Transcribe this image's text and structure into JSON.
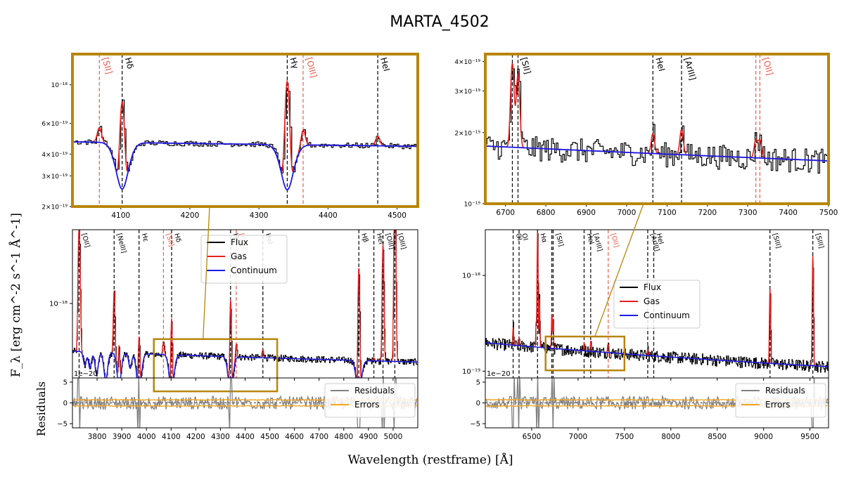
{
  "chart_data": {
    "type": "line",
    "title": "MARTA_4502",
    "ylabel": "F_λ [erg cm^-2 s^-1 Å^-1]",
    "xlabel": "Wavelength (restframe) [Å]",
    "residuals_ylabel": "Residuals",
    "frame_color": "#b8860b",
    "series_colors": {
      "flux": "#000000",
      "gas": "#e8201e",
      "continuum": "#1a1ae6",
      "residuals": "#808080",
      "errors": "#f5a623"
    },
    "legend_main": [
      "Flux",
      "Gas",
      "Continuum"
    ],
    "legend_resid": [
      "Residuals",
      "Errors"
    ],
    "residual_offset_label": "1e−20",
    "panels": [
      {
        "id": "inset-left",
        "xlim": [
          4030,
          4530
        ],
        "ylim": [
          2e-19,
          1.5e-18
        ],
        "yscale": "log",
        "xticks": [
          4100,
          4200,
          4300,
          4400,
          4500
        ],
        "yticks": [
          {
            "v": 2e-19,
            "label": "2×10⁻¹⁹"
          },
          {
            "v": 3e-19,
            "label": "3×10⁻¹⁹"
          },
          {
            "v": 4e-19,
            "label": "4×10⁻¹⁹"
          },
          {
            "v": 6e-19,
            "label": "6×10⁻¹⁹"
          },
          {
            "v": 1e-18,
            "label": "10⁻¹⁸"
          }
        ],
        "lines": [
          {
            "wl": 4069,
            "label": "[SII]",
            "color": "red"
          },
          {
            "wl": 4102,
            "label": "Hδ",
            "color": "black"
          },
          {
            "wl": 4341,
            "label": "Hγ",
            "color": "black"
          },
          {
            "wl": 4364,
            "label": "[OIII]",
            "color": "red"
          },
          {
            "wl": 4472,
            "label": "HeI",
            "color": "black"
          }
        ]
      },
      {
        "id": "inset-right",
        "xlim": [
          6650,
          7500
        ],
        "ylim": [
          1e-19,
          4.3e-19
        ],
        "yscale": "log",
        "xticks": [
          6700,
          6800,
          6900,
          7000,
          7100,
          7200,
          7300,
          7400,
          7500
        ],
        "yticks": [
          {
            "v": 1e-19,
            "label": "10⁻¹⁹"
          },
          {
            "v": 2e-19,
            "label": "2×10⁻¹⁹"
          },
          {
            "v": 3e-19,
            "label": "3×10⁻¹⁹"
          },
          {
            "v": 4e-19,
            "label": "4×10⁻¹⁹"
          }
        ],
        "lines": [
          {
            "wl": 6717,
            "label": "",
            "color": "black"
          },
          {
            "wl": 6731,
            "label": "[SII]",
            "color": "black"
          },
          {
            "wl": 7065,
            "label": "HeI",
            "color": "black"
          },
          {
            "wl": 7136,
            "label": "[ArIII]",
            "color": "black"
          },
          {
            "wl": 7320,
            "label": "",
            "color": "red"
          },
          {
            "wl": 7330,
            "label": "[OII]",
            "color": "red"
          }
        ]
      },
      {
        "id": "main-left",
        "xlim": [
          3700,
          5100
        ],
        "ylim": [
          3.3e-19,
          3e-18
        ],
        "yscale": "log",
        "xticks": [
          3800,
          3900,
          4000,
          4100,
          4200,
          4300,
          4400,
          4500,
          4600,
          4700,
          4800,
          4900,
          5000
        ],
        "yticks": [
          {
            "v": 1e-18,
            "label": "10⁻¹⁸"
          }
        ],
        "lines": [
          {
            "wl": 3727,
            "label": "[OII]",
            "color": "black"
          },
          {
            "wl": 3869,
            "label": "[NeIII]",
            "color": "black"
          },
          {
            "wl": 3970,
            "label": "Hε",
            "color": "black"
          },
          {
            "wl": 4069,
            "label": "[SII]",
            "color": "red"
          },
          {
            "wl": 4102,
            "label": "Hδ",
            "color": "black"
          },
          {
            "wl": 4341,
            "label": "Hγ",
            "color": "black"
          },
          {
            "wl": 4364,
            "label": "[OIII]",
            "color": "red"
          },
          {
            "wl": 4472,
            "label": "HeI",
            "color": "black"
          },
          {
            "wl": 4861,
            "label": "Hβ",
            "color": "black"
          },
          {
            "wl": 4922,
            "label": "HeI",
            "color": "black"
          },
          {
            "wl": 4959,
            "label": "[OIII]",
            "color": "black"
          },
          {
            "wl": 5007,
            "label": "[OIII]",
            "color": "black"
          }
        ],
        "zoom_box": {
          "x": [
            4030,
            4530
          ],
          "y": [
            3e-19,
            4.3e-19
          ]
        }
      },
      {
        "id": "main-right",
        "xlim": [
          6000,
          9700
        ],
        "ylim": [
          8.5e-20,
          3e-18
        ],
        "yscale": "log",
        "xticks": [
          6500,
          7000,
          7500,
          8000,
          8500,
          9000,
          9500
        ],
        "yticks": [
          {
            "v": 1e-19,
            "label": "10⁻¹⁹"
          },
          {
            "v": 1e-18,
            "label": "10⁻¹⁸"
          }
        ],
        "lines": [
          {
            "wl": 6300,
            "label": "OI",
            "color": "black"
          },
          {
            "wl": 6364,
            "label": "OI",
            "color": "black"
          },
          {
            "wl": 6563,
            "label": "Hα",
            "color": "black"
          },
          {
            "wl": 6717,
            "label": "",
            "color": "black"
          },
          {
            "wl": 6731,
            "label": "[SII]",
            "color": "black"
          },
          {
            "wl": 7065,
            "label": "HeI",
            "color": "black"
          },
          {
            "wl": 7136,
            "label": "[ArIII]",
            "color": "black"
          },
          {
            "wl": 7325,
            "label": "[OII]",
            "color": "red"
          },
          {
            "wl": 7751,
            "label": "[ArIII]",
            "color": "black"
          },
          {
            "wl": 7816,
            "label": "HeI",
            "color": "black"
          },
          {
            "wl": 9069,
            "label": "[SIII]",
            "color": "black"
          },
          {
            "wl": 9531,
            "label": "[SIII]",
            "color": "black"
          }
        ],
        "zoom_box": {
          "x": [
            6650,
            7500
          ],
          "y": [
            1.02e-19,
            2.3e-19
          ]
        }
      },
      {
        "id": "resid-left",
        "xlim": [
          3700,
          5100
        ],
        "ylim": [
          -6,
          6
        ],
        "xticks": [
          3800,
          3900,
          4000,
          4100,
          4200,
          4300,
          4400,
          4500,
          4600,
          4700,
          4800,
          4900,
          5000
        ],
        "yticks": [
          {
            "v": -5,
            "label": "−5"
          },
          {
            "v": 0,
            "label": "0"
          },
          {
            "v": 5,
            "label": "5"
          }
        ]
      },
      {
        "id": "resid-right",
        "xlim": [
          6000,
          9700
        ],
        "ylim": [
          -6,
          6
        ],
        "xticks": [
          6500,
          7000,
          7500,
          8000,
          8500,
          9000,
          9500
        ],
        "yticks": [
          {
            "v": -5,
            "label": "−5"
          },
          {
            "v": 0,
            "label": "0"
          },
          {
            "v": 5,
            "label": "5"
          }
        ]
      }
    ]
  }
}
